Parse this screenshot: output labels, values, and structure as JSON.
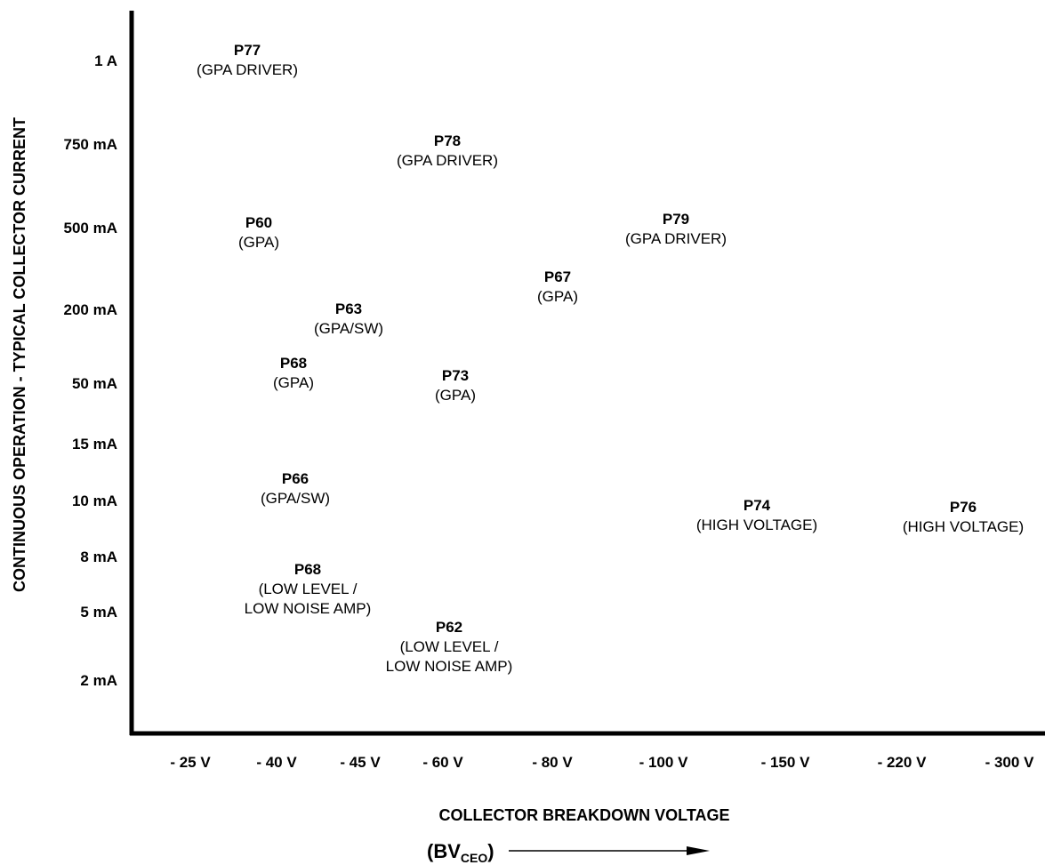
{
  "chart_data": {
    "type": "scatter",
    "title": "",
    "ylabel": "CONTINUOUS OPERATION - TYPICAL COLLECTOR CURRENT",
    "xlabel": "COLLECTOR BREAKDOWN VOLTAGE",
    "xlabel_sub": {
      "base": "(BV",
      "sub": "CEO",
      "close": ")"
    },
    "y_categories": [
      "2 mA",
      "5 mA",
      "8 mA",
      "10 mA",
      "15 mA",
      "50 mA",
      "200 mA",
      "500 mA",
      "750 mA",
      "1 A"
    ],
    "x_categories": [
      "- 25 V",
      "- 40 V",
      "- 45 V",
      "- 60 V",
      "- 80 V",
      "- 100 V",
      "- 150 V",
      "- 220 V",
      "- 300 V"
    ],
    "grid": false,
    "legend": "none",
    "points": [
      {
        "name": "P77",
        "desc": [
          "(GPA DRIVER)"
        ],
        "x": "- 25 V",
        "y": "1 A"
      },
      {
        "name": "P78",
        "desc": [
          "(GPA DRIVER)"
        ],
        "x": "- 60 V",
        "y": "750 mA"
      },
      {
        "name": "P60",
        "desc": [
          "(GPA)"
        ],
        "x": "- 40 V",
        "y": "500 mA"
      },
      {
        "name": "P79",
        "desc": [
          "(GPA DRIVER)"
        ],
        "x": "- 100 V",
        "y": "500 mA"
      },
      {
        "name": "P63",
        "desc": [
          "(GPA/SW)"
        ],
        "x": "- 45 V",
        "y": "200 mA"
      },
      {
        "name": "P67",
        "desc": [
          "(GPA)"
        ],
        "x": "- 80 V",
        "y": "200 mA"
      },
      {
        "name": "P68",
        "desc": [
          "(GPA)"
        ],
        "x": "- 40 V",
        "y": "50 mA"
      },
      {
        "name": "P73",
        "desc": [
          "(GPA)"
        ],
        "x": "- 60 V",
        "y": "50 mA"
      },
      {
        "name": "P66",
        "desc": [
          "(GPA/SW)"
        ],
        "x": "- 40 V",
        "y": "10 mA"
      },
      {
        "name": "P68",
        "desc": [
          "(LOW LEVEL /",
          "LOW NOISE AMP)"
        ],
        "x": "- 40 V",
        "y": "8 mA"
      },
      {
        "name": "P74",
        "desc": [
          "(HIGH VOLTAGE)"
        ],
        "x": "- 150 V",
        "y": "10 mA"
      },
      {
        "name": "P76",
        "desc": [
          "(HIGH VOLTAGE)"
        ],
        "x": "- 300 V",
        "y": "10 mA"
      },
      {
        "name": "P62",
        "desc": [
          "(LOW LEVEL /",
          "LOW NOISE AMP)"
        ],
        "x": "- 60 V",
        "y": "2 mA"
      }
    ]
  }
}
